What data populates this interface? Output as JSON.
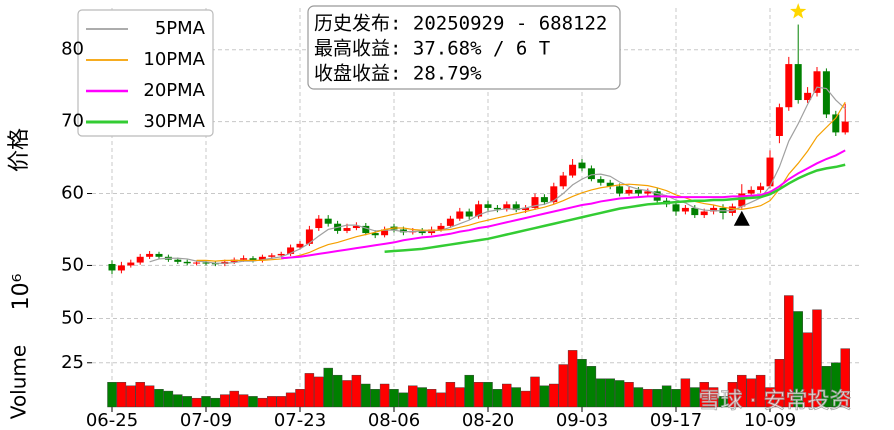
{
  "chart_data": {
    "type": "candlestick",
    "categories": [
      "06-25",
      null,
      null,
      null,
      null,
      null,
      null,
      null,
      null,
      null,
      "07-09",
      null,
      null,
      null,
      null,
      null,
      null,
      null,
      null,
      null,
      "07-23",
      null,
      null,
      null,
      null,
      null,
      null,
      null,
      null,
      null,
      "08-06",
      null,
      null,
      null,
      null,
      null,
      null,
      null,
      null,
      null,
      "08-20",
      null,
      null,
      null,
      null,
      null,
      null,
      null,
      null,
      null,
      "09-03",
      null,
      null,
      null,
      null,
      null,
      null,
      null,
      null,
      null,
      "09-17",
      null,
      null,
      null,
      null,
      null,
      null,
      null,
      null,
      null,
      "10-09",
      null,
      null,
      null,
      null,
      null,
      null,
      null,
      null
    ],
    "open": [
      50.2,
      49.3,
      50.0,
      50.4,
      51.2,
      51.6,
      51.2,
      50.8,
      50.5,
      50.3,
      50.4,
      50.3,
      50.2,
      50.5,
      50.8,
      51.0,
      50.7,
      51.2,
      51.4,
      51.6,
      52.5,
      53.0,
      55.2,
      56.5,
      55.8,
      54.8,
      55.2,
      55.5,
      54.5,
      54.2,
      55.4,
      55.0,
      54.6,
      54.8,
      54.5,
      55.0,
      55.5,
      56.5,
      57.5,
      56.8,
      58.5,
      58.0,
      57.8,
      58.5,
      57.7,
      58.0,
      59.5,
      58.8,
      61.0,
      62.5,
      64.3,
      63.5,
      62.0,
      61.5,
      61.0,
      60.0,
      60.5,
      60.0,
      60.3,
      59.0,
      58.5,
      57.5,
      58.0,
      57.0,
      57.5,
      58.0,
      57.3,
      58.2,
      60.0,
      60.5,
      61.0,
      68.0,
      72.0,
      78.0,
      73.0,
      74.0,
      77.0,
      71.0,
      68.5
    ],
    "high": [
      50.7,
      50.5,
      50.8,
      51.6,
      52.0,
      51.9,
      51.5,
      51.1,
      50.8,
      50.7,
      50.7,
      50.6,
      50.8,
      51.1,
      51.4,
      51.3,
      51.5,
      51.7,
      51.9,
      52.9,
      53.4,
      55.5,
      57.0,
      57.0,
      56.2,
      55.8,
      56.0,
      55.9,
      54.9,
      55.4,
      55.8,
      55.4,
      55.2,
      55.2,
      55.4,
      55.9,
      56.9,
      58.0,
      57.9,
      59.0,
      59.0,
      58.4,
      58.9,
      58.9,
      58.4,
      60.0,
      59.9,
      61.5,
      63.0,
      64.8,
      64.8,
      63.9,
      62.4,
      61.9,
      61.4,
      60.9,
      60.9,
      60.7,
      60.7,
      59.4,
      58.9,
      58.4,
      58.4,
      57.9,
      58.4,
      58.5,
      58.6,
      61.3,
      61.0,
      61.5,
      66.0,
      72.5,
      79.0,
      83.5,
      74.8,
      77.6,
      77.4,
      71.5,
      72.5
    ],
    "low": [
      48.8,
      48.9,
      49.7,
      50.1,
      50.9,
      50.9,
      50.5,
      50.2,
      50.0,
      50.0,
      50.0,
      49.9,
      49.9,
      50.2,
      50.5,
      50.4,
      50.4,
      50.9,
      51.1,
      51.3,
      52.2,
      52.7,
      54.8,
      55.4,
      54.4,
      54.5,
      54.9,
      54.2,
      53.8,
      53.9,
      54.6,
      54.2,
      54.3,
      54.2,
      54.2,
      54.7,
      55.2,
      56.2,
      56.4,
      56.5,
      57.6,
      57.4,
      57.5,
      57.4,
      57.3,
      57.7,
      58.4,
      58.5,
      60.6,
      62.2,
      63.1,
      61.7,
      61.1,
      60.6,
      59.6,
      59.7,
      59.6,
      59.7,
      58.6,
      58.1,
      56.9,
      57.1,
      56.6,
      56.6,
      57.1,
      56.4,
      56.9,
      57.9,
      59.6,
      60.1,
      60.7,
      67.0,
      71.5,
      72.5,
      72.6,
      73.5,
      70.5,
      68.0,
      68.2
    ],
    "close": [
      49.3,
      50.0,
      50.4,
      51.2,
      51.6,
      51.2,
      50.8,
      50.5,
      50.3,
      50.4,
      50.3,
      50.2,
      50.5,
      50.8,
      51.0,
      50.7,
      51.2,
      51.4,
      51.6,
      52.5,
      53.0,
      55.0,
      56.5,
      55.8,
      54.8,
      55.2,
      55.5,
      54.5,
      54.2,
      55.0,
      55.0,
      54.6,
      54.8,
      54.5,
      55.0,
      55.5,
      56.5,
      57.5,
      56.8,
      58.5,
      58.0,
      57.8,
      58.5,
      57.7,
      58.0,
      59.5,
      58.8,
      61.0,
      62.5,
      64.0,
      63.5,
      62.0,
      61.5,
      61.0,
      60.0,
      60.5,
      60.0,
      60.3,
      59.0,
      58.5,
      57.5,
      58.0,
      57.0,
      57.5,
      58.0,
      57.3,
      58.2,
      60.0,
      60.5,
      61.0,
      65.0,
      72.0,
      78.0,
      73.0,
      74.0,
      77.0,
      71.0,
      68.5,
      70.0
    ],
    "up_color": "#ff0000",
    "down_color": "#008000",
    "series": [
      {
        "name": "5PMA",
        "color": "#a0a0a0",
        "width": 1.2,
        "values": [
          null,
          null,
          null,
          null,
          50.5,
          50.9,
          51.0,
          51.0,
          50.9,
          50.6,
          50.5,
          50.3,
          50.3,
          50.4,
          50.6,
          50.6,
          50.8,
          51.0,
          51.2,
          51.7,
          52.3,
          53.1,
          54.1,
          55.0,
          55.3,
          55.6,
          55.6,
          55.2,
          54.8,
          54.9,
          54.9,
          54.7,
          54.7,
          54.8,
          54.8,
          54.9,
          55.3,
          55.8,
          56.3,
          57.0,
          57.5,
          57.7,
          57.9,
          57.8,
          58.0,
          58.3,
          58.5,
          59.0,
          60.0,
          61.2,
          62.0,
          62.6,
          62.7,
          62.4,
          61.6,
          61.0,
          60.6,
          60.4,
          60.0,
          59.7,
          59.1,
          58.7,
          58.0,
          57.7,
          57.6,
          57.6,
          57.6,
          58.2,
          58.8,
          59.4,
          61.0,
          63.7,
          67.3,
          69.7,
          72.4,
          74.8,
          74.6,
          73.0,
          71.8
        ]
      },
      {
        "name": "10PMA",
        "color": "#f5a000",
        "width": 1.2,
        "values": [
          null,
          null,
          null,
          null,
          null,
          null,
          null,
          null,
          null,
          50.7,
          50.7,
          50.6,
          50.7,
          50.7,
          50.7,
          50.7,
          50.7,
          50.8,
          50.9,
          51.1,
          51.4,
          51.8,
          52.4,
          52.9,
          53.2,
          53.6,
          54.0,
          54.3,
          54.6,
          55.0,
          55.2,
          55.2,
          55.0,
          54.9,
          54.9,
          54.9,
          55.0,
          55.3,
          55.6,
          56.0,
          56.3,
          56.6,
          56.9,
          57.2,
          57.5,
          57.8,
          58.1,
          58.5,
          59.0,
          59.6,
          60.1,
          60.5,
          60.8,
          61.0,
          61.2,
          61.3,
          61.2,
          61.1,
          60.8,
          60.4,
          59.8,
          59.4,
          58.9,
          58.6,
          58.4,
          58.1,
          57.9,
          57.8,
          58.0,
          58.3,
          59.0,
          60.6,
          62.7,
          64.2,
          65.9,
          67.9,
          69.2,
          70.5,
          72.7
        ]
      },
      {
        "name": "20PMA",
        "color": "#ff00ff",
        "width": 2,
        "values": [
          null,
          null,
          null,
          null,
          null,
          null,
          null,
          null,
          null,
          null,
          null,
          null,
          null,
          null,
          null,
          null,
          null,
          null,
          51.0,
          51.1,
          51.2,
          51.4,
          51.6,
          51.8,
          52.0,
          52.2,
          52.4,
          52.6,
          52.8,
          53.0,
          53.2,
          53.5,
          53.7,
          53.9,
          54.0,
          54.2,
          54.4,
          54.7,
          54.9,
          55.2,
          55.4,
          55.7,
          56.0,
          56.3,
          56.6,
          56.9,
          57.2,
          57.5,
          57.8,
          58.1,
          58.4,
          58.6,
          58.9,
          59.1,
          59.3,
          59.4,
          59.5,
          59.6,
          59.6,
          59.6,
          59.5,
          59.5,
          59.5,
          59.5,
          59.5,
          59.5,
          59.6,
          59.6,
          59.7,
          59.8,
          60.2,
          61.0,
          62.0,
          62.8,
          63.5,
          64.2,
          64.8,
          65.3,
          66.0
        ]
      },
      {
        "name": "30PMA",
        "color": "#33cc33",
        "width": 2.5,
        "values": [
          null,
          null,
          null,
          null,
          null,
          null,
          null,
          null,
          null,
          null,
          null,
          null,
          null,
          null,
          null,
          null,
          null,
          null,
          null,
          null,
          null,
          null,
          null,
          null,
          null,
          null,
          null,
          null,
          null,
          51.9,
          52.0,
          52.1,
          52.2,
          52.3,
          52.5,
          52.7,
          52.9,
          53.1,
          53.3,
          53.5,
          53.7,
          54.0,
          54.3,
          54.6,
          54.9,
          55.2,
          55.5,
          55.8,
          56.1,
          56.4,
          56.7,
          57.0,
          57.3,
          57.6,
          57.9,
          58.1,
          58.3,
          58.5,
          58.6,
          58.7,
          58.8,
          58.9,
          59.0,
          59.0,
          59.1,
          59.1,
          59.2,
          59.3,
          59.4,
          59.5,
          59.9,
          60.6,
          61.4,
          62.1,
          62.7,
          63.2,
          63.5,
          63.7,
          64.0
        ]
      }
    ],
    "ylabel": "价格",
    "ylim": [
      47,
      85.8
    ],
    "yticks": [
      50,
      60,
      70,
      80
    ],
    "grid": true,
    "legend": "upper left",
    "volume": {
      "ylabel": "Volume",
      "offset_label": "10⁶",
      "ylim": [
        0,
        65
      ],
      "yticks": [
        25,
        50
      ],
      "values": [
        14,
        14,
        12,
        14,
        12,
        10,
        9,
        7,
        6,
        5,
        6,
        5,
        7,
        9,
        7,
        6,
        5,
        6,
        6,
        8,
        10,
        19,
        17,
        22,
        18,
        15,
        18,
        13,
        10,
        13,
        10,
        8,
        12,
        11,
        10,
        8,
        14,
        11,
        18,
        14,
        14,
        10,
        13,
        11,
        9,
        17,
        12,
        13,
        24,
        32,
        27,
        23,
        16,
        16,
        15,
        14,
        11,
        10,
        10,
        12,
        10,
        16,
        11,
        14,
        11,
        6,
        14,
        18,
        16,
        18,
        11,
        27,
        63,
        54,
        42,
        55,
        23,
        25,
        33
      ]
    },
    "annotation": {
      "lines": [
        "历史发布: 20250929 - 688122",
        "最高收益: 37.68% / 6 T",
        "收盘收益: 28.79%"
      ]
    },
    "markers": [
      {
        "shape": "star",
        "index": 73,
        "value": 85.3,
        "color": "#ffd700"
      },
      {
        "shape": "triangle",
        "index": 67,
        "value": 56.5,
        "color": "#000000"
      }
    ],
    "watermark": "雪球 · 安常投资"
  }
}
